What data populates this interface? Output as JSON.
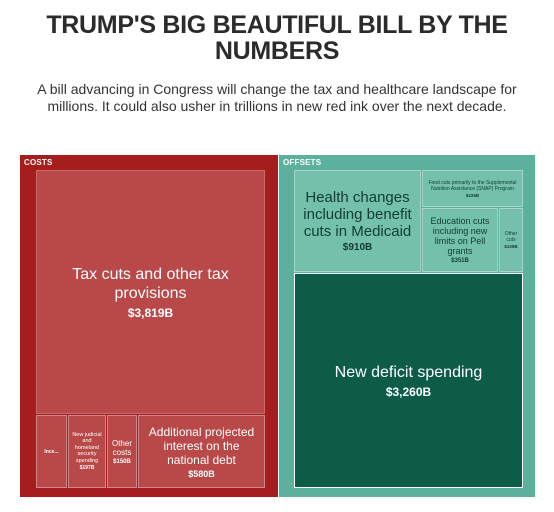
{
  "header": {
    "title": "TRUMP'S BIG BEAUTIFUL BILL BY THE NUMBERS",
    "subtitle": "A bill advancing in Congress will change the tax and healthcare landscape for millions. It could also usher in trillions in new red ink over the next decade."
  },
  "colors": {
    "costs_frame": "#a51d1d",
    "costs_tile": "#b94848",
    "offsets_frame": "#5bb19b",
    "offsets_tile": "#75c0ab",
    "deficit_tile": "#0c5c48"
  },
  "chart_data": {
    "type": "treemap",
    "units": "$ billions",
    "groups": [
      {
        "name": "COSTS",
        "items": [
          {
            "label": "Tax cuts and other tax provisions",
            "value": 3819,
            "value_label": "$3,819B"
          },
          {
            "label": "Additional projected interest on the national debt",
            "value": 580,
            "value_label": "$580B"
          },
          {
            "label": "New judicial and homeland security spending",
            "value": 197,
            "value_label": "$197B"
          },
          {
            "label": "Other costs",
            "value": 150,
            "value_label": "$150B"
          },
          {
            "label": "Ince...",
            "value": null,
            "value_label": ""
          }
        ]
      },
      {
        "name": "OFFSETS",
        "items": [
          {
            "label": "New deficit spending",
            "value": 3260,
            "value_label": "$3,260B"
          },
          {
            "label": "Health changes including benefit cuts in Medicaid",
            "value": 910,
            "value_label": "$910B"
          },
          {
            "label": "Education cuts including new limits on Pell grants",
            "value": 351,
            "value_label": "$351B"
          },
          {
            "label": "Food cuts primarily to the Supplemental Nutrition Assistance (SNAP) Program",
            "value": 226,
            "value_label": "$226B"
          },
          {
            "label": "Other cuts",
            "value": null,
            "value_label": "$109B"
          }
        ]
      }
    ]
  }
}
